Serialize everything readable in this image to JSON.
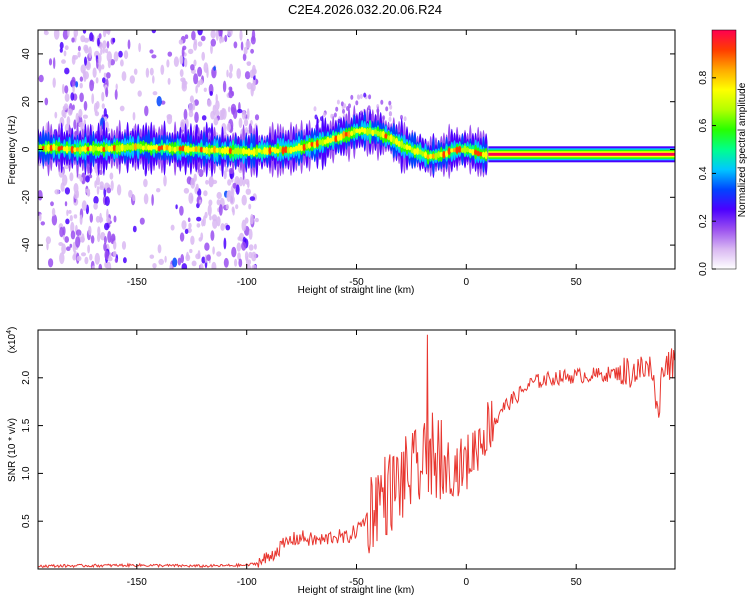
{
  "title": "C2E4.2026.032.20.06.R24",
  "chart_data": [
    {
      "type": "heatmap",
      "xlabel": "Height of straight line (km)",
      "ylabel": "Frequency (Hz)",
      "xlim": [
        -195,
        95
      ],
      "ylim": [
        -50,
        50
      ],
      "xticks": [
        -150,
        -100,
        -50,
        0,
        50
      ],
      "yticks": [
        -40,
        -20,
        0,
        20,
        40
      ],
      "colorbar": {
        "label": "Normalized spectral amplitude",
        "range": [
          0.0,
          1.0
        ],
        "ticks": [
          "0.0",
          "0.2",
          "0.4",
          "0.6",
          "0.8"
        ],
        "colors": [
          "#ffffff",
          "#d9b8f2",
          "#9a4ff0",
          "#4b00ff",
          "#0045ff",
          "#00c8ff",
          "#00ff8c",
          "#28ff00",
          "#b4ff00",
          "#ffff00",
          "#ffaa00",
          "#ff3c00",
          "#ff0050"
        ]
      },
      "ridge": {
        "x": [
          -195,
          -175,
          -150,
          -125,
          -100,
          -80,
          -65,
          -55,
          -48,
          -40,
          -33,
          -28,
          -22,
          -17,
          -10,
          -5,
          0,
          8,
          10,
          95
        ],
        "freq": [
          1,
          0,
          1,
          0,
          -1,
          0,
          3,
          6,
          8,
          7,
          4,
          1,
          -1,
          -3,
          -2,
          0,
          0,
          -2,
          -2,
          -2
        ]
      },
      "grid": false
    },
    {
      "type": "line",
      "xlabel": "Height of straight line (km)",
      "ylabel": "SNR (10 * v/v)",
      "y_multiplier": "(x10",
      "y_multiplier_exp": "4",
      "y_multiplier_close": ")",
      "xlim": [
        -195,
        95
      ],
      "ylim": [
        0,
        2.5
      ],
      "xticks": [
        -150,
        -100,
        -50,
        0,
        50
      ],
      "yticks": [
        "0.5",
        "1.0",
        "1.5",
        "2.0"
      ],
      "color": "#e8362f",
      "series": [
        {
          "x": [
            -195,
            -150,
            -120,
            -100,
            -95,
            -90,
            -85,
            -80,
            -75,
            -70,
            -65,
            -60,
            -55,
            -50,
            -45,
            -40,
            -35,
            -30,
            -25,
            -20,
            -15,
            -10,
            -5,
            0,
            5,
            10,
            15,
            20,
            25,
            30,
            40,
            50,
            60,
            70,
            80,
            85,
            88,
            90,
            95
          ],
          "y": [
            0.03,
            0.04,
            0.03,
            0.04,
            0.06,
            0.12,
            0.22,
            0.3,
            0.33,
            0.3,
            0.3,
            0.35,
            0.32,
            0.4,
            0.55,
            0.75,
            0.8,
            0.9,
            1.0,
            1.05,
            1.2,
            1.1,
            1.05,
            1.1,
            1.3,
            1.5,
            1.65,
            1.75,
            1.85,
            1.95,
            2.0,
            2.02,
            2.03,
            2.05,
            2.08,
            2.1,
            1.8,
            2.2,
            2.1
          ]
        }
      ],
      "grid": false
    }
  ]
}
